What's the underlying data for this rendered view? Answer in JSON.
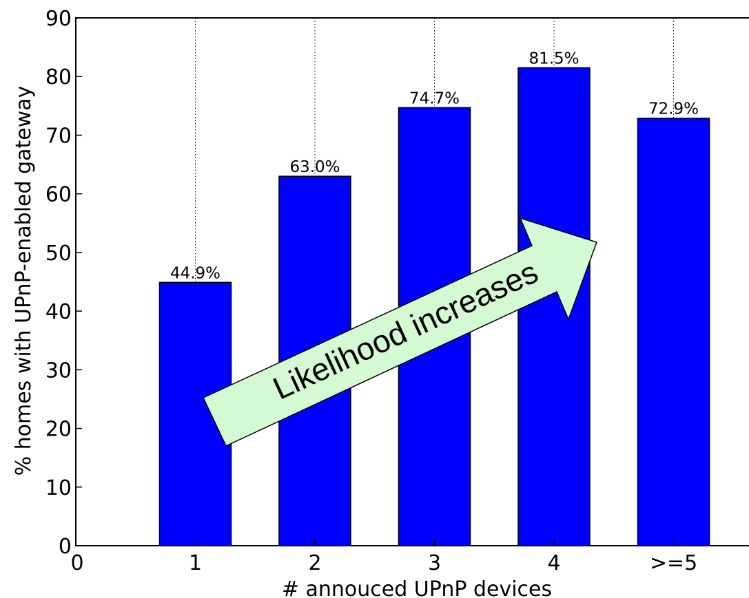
{
  "chart_data": {
    "type": "bar",
    "categories": [
      "1",
      "2",
      "3",
      "4",
      ">=5"
    ],
    "x_ticks": [
      "0",
      "1",
      "2",
      "3",
      "4",
      ">=5"
    ],
    "values": [
      44.9,
      63.0,
      74.7,
      81.5,
      72.9
    ],
    "data_labels": [
      "44.9%",
      "63.0%",
      "74.7%",
      "81.5%",
      "72.9%"
    ],
    "xlabel": "# annouced UPnP devices",
    "ylabel": "% homes with UPnP-enabled gateway",
    "ylim": [
      0,
      90
    ],
    "y_ticks": [
      0,
      10,
      20,
      30,
      40,
      50,
      60,
      70,
      80,
      90
    ],
    "grid": "vertical dotted at category ticks",
    "bar_color": "#0000ff",
    "annotation": {
      "text": "Likelihood increases",
      "shape": "arrow-right-upward",
      "fill": "#d4fad4"
    }
  }
}
